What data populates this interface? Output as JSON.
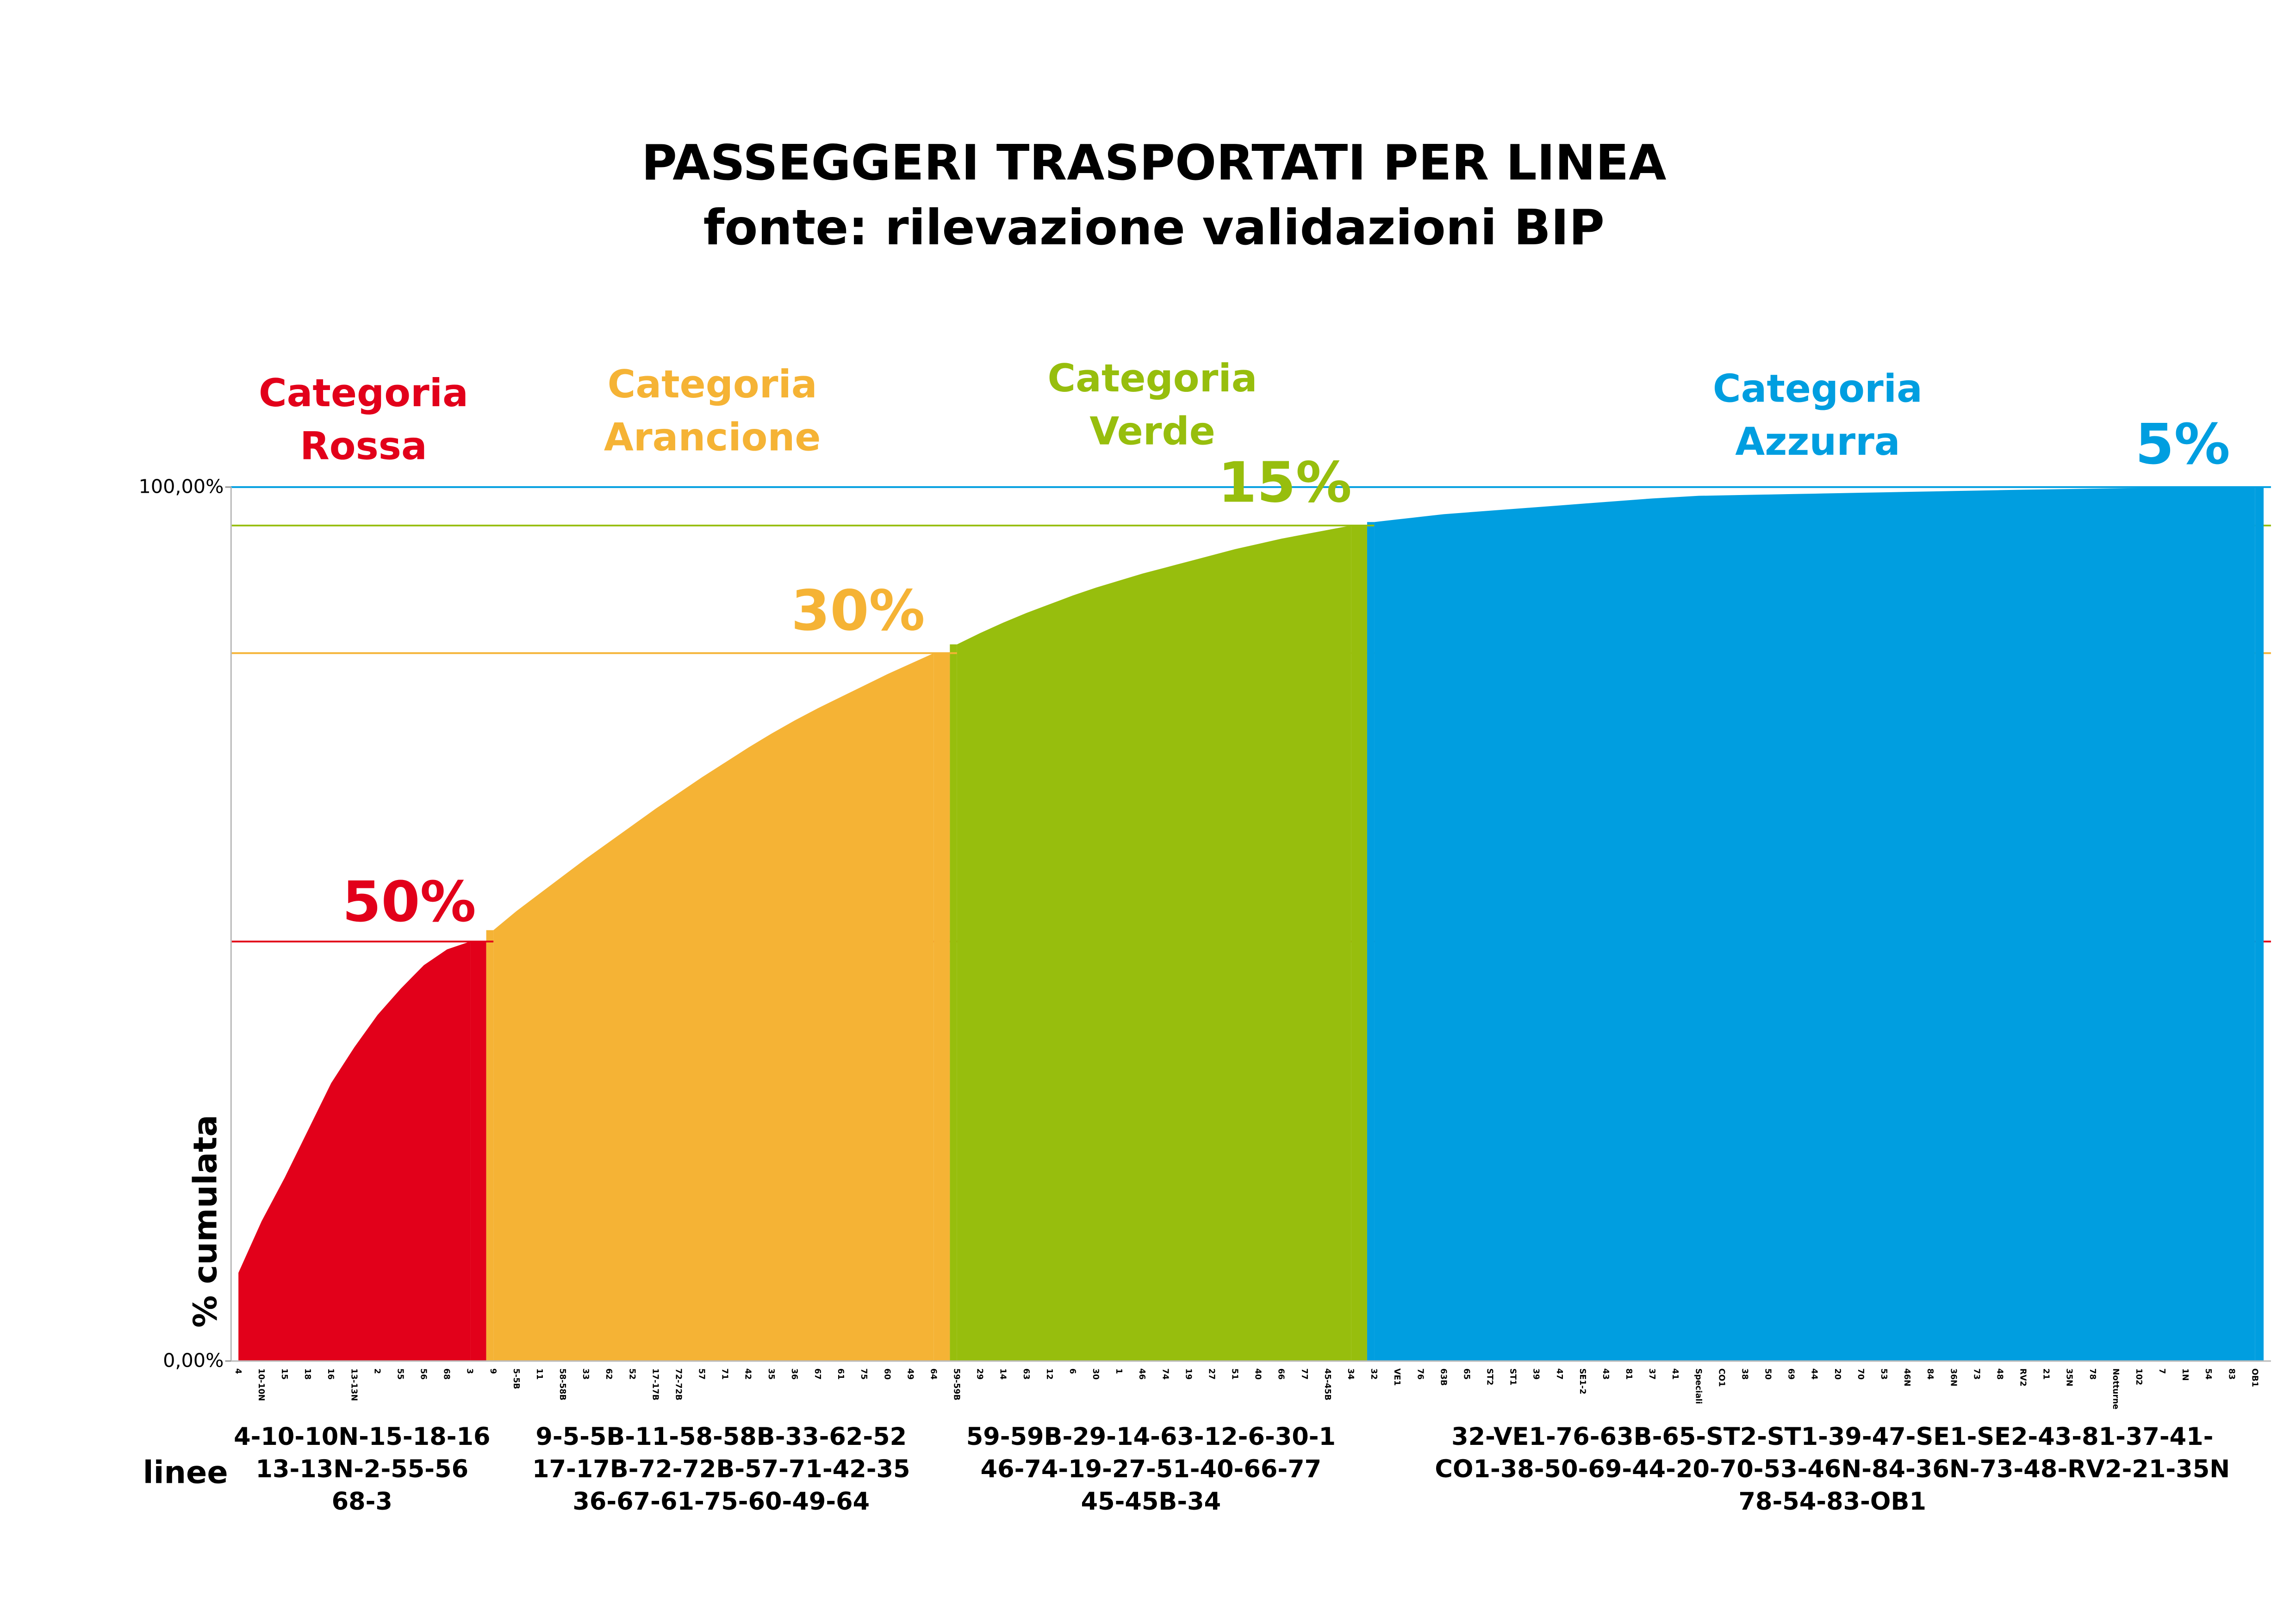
{
  "chart_data": {
    "type": "area",
    "title": "PASSEGGERI TRASPORTATI PER LINEA",
    "subtitle": "fonte: rilevazione validazioni BIP",
    "y_label": "% cumulata",
    "x_label": "linee",
    "ylim": [
      0,
      100
    ],
    "yticks": [
      {
        "value": 0,
        "label": "0,00%"
      },
      {
        "value": 100,
        "label": "100,00%"
      }
    ],
    "categories": [
      "4",
      "10-10N",
      "15",
      "18",
      "16",
      "13-13N",
      "2",
      "55",
      "56",
      "68",
      "3",
      "9",
      "5-5B",
      "11",
      "58-58B",
      "33",
      "62",
      "52",
      "17-17B",
      "72-72B",
      "57",
      "71",
      "42",
      "35",
      "36",
      "67",
      "61",
      "75",
      "60",
      "49",
      "64",
      "59-59B",
      "29",
      "14",
      "63",
      "12",
      "6",
      "30",
      "1",
      "46",
      "74",
      "19",
      "27",
      "51",
      "40",
      "66",
      "77",
      "45-45B",
      "34",
      "32",
      "VE1",
      "76",
      "63B",
      "65",
      "ST2",
      "ST1",
      "39",
      "47",
      "SE1-2",
      "43",
      "81",
      "37",
      "41",
      "Speciali",
      "CO1",
      "38",
      "50",
      "69",
      "44",
      "20",
      "70",
      "53",
      "46N",
      "84",
      "36N",
      "73",
      "48",
      "RV2",
      "21",
      "35N",
      "78",
      "Notturne",
      "102",
      "7",
      "1N",
      "54",
      "83",
      "OB1"
    ],
    "series": [
      {
        "name": "Categoria Rossa",
        "color": "#e2001a",
        "share_label": "50%",
        "lines_label": [
          "4-10-10N-15-18-16",
          "13-13N-2-55-56",
          "68-3"
        ],
        "values": [
          10.1,
          16,
          21,
          26.4,
          31.8,
          35.9,
          39.6,
          42.6,
          45.3,
          47.1,
          48,
          null,
          null,
          null,
          null,
          null,
          null,
          null,
          null,
          null,
          null,
          null,
          null,
          null,
          null,
          null,
          null,
          null,
          null,
          null,
          null,
          null,
          null,
          null,
          null,
          null,
          null,
          null,
          null,
          null,
          null,
          null,
          null,
          null,
          null,
          null,
          null,
          null,
          null,
          null,
          null,
          null,
          null,
          null,
          null,
          null,
          null,
          null,
          null,
          null,
          null,
          null,
          null,
          null,
          null,
          null,
          null,
          null,
          null,
          null,
          null,
          null,
          null,
          null,
          null,
          null,
          null,
          null,
          null,
          null,
          null,
          null,
          null,
          null,
          null,
          null,
          null,
          null
        ]
      },
      {
        "name": "Categoria Arancione",
        "color": "#f5b335",
        "share_label": "30%",
        "lines_label": [
          "9-5-5B-11-58-58B-33-62-52",
          "17-17B-72-72B-57-71-42-35",
          "36-67-61-75-60-49-64"
        ],
        "values": [
          null,
          null,
          null,
          null,
          null,
          null,
          null,
          null,
          null,
          null,
          null,
          49.3,
          51.5,
          53.5,
          55.5,
          57.5,
          59.4,
          61.3,
          63.2,
          65,
          66.8,
          68.5,
          70.2,
          71.8,
          73.3,
          74.7,
          76,
          77.3,
          78.6,
          79.8,
          81,
          null,
          null,
          null,
          null,
          null,
          null,
          null,
          null,
          null,
          null,
          null,
          null,
          null,
          null,
          null,
          null,
          null,
          null,
          null,
          null,
          null,
          null,
          null,
          null,
          null,
          null,
          null,
          null,
          null,
          null,
          null,
          null,
          null,
          null,
          null,
          null,
          null,
          null,
          null,
          null,
          null,
          null,
          null,
          null,
          null,
          null,
          null,
          null,
          null,
          null,
          null,
          null,
          null,
          null,
          null,
          null,
          null
        ]
      },
      {
        "name": "Categoria Verde",
        "color": "#97be0d",
        "share_label": "15%",
        "lines_label": [
          "59-59B-29-14-63-12-6-30-1",
          "46-74-19-27-51-40-66-77",
          "45-45B-34"
        ],
        "values": [
          null,
          null,
          null,
          null,
          null,
          null,
          null,
          null,
          null,
          null,
          null,
          null,
          null,
          null,
          null,
          null,
          null,
          null,
          null,
          null,
          null,
          null,
          null,
          null,
          null,
          null,
          null,
          null,
          null,
          null,
          null,
          82,
          83.3,
          84.5,
          85.6,
          86.6,
          87.6,
          88.5,
          89.3,
          90.1,
          90.8,
          91.5,
          92.2,
          92.9,
          93.5,
          94.1,
          94.6,
          95.1,
          95.6,
          null,
          null,
          null,
          null,
          null,
          null,
          null,
          null,
          null,
          null,
          null,
          null,
          null,
          null,
          null,
          null,
          null,
          null,
          null,
          null,
          null,
          null,
          null,
          null,
          null,
          null,
          null,
          null,
          null,
          null,
          null,
          null,
          null,
          null,
          null,
          null,
          null,
          null,
          null
        ]
      },
      {
        "name": "Categoria Azzurra",
        "color": "#009ee0",
        "share_label": "5%",
        "lines_label": [
          "32-VE1-76-63B-65-ST2-ST1-39-47-SE1-SE2-43-81-37-41-",
          "CO1-38-50-69-44-20-70-53-46N-84-36N-73-48-RV2-21-35N",
          "78-54-83-OB1"
        ],
        "values": [
          null,
          null,
          null,
          null,
          null,
          null,
          null,
          null,
          null,
          null,
          null,
          null,
          null,
          null,
          null,
          null,
          null,
          null,
          null,
          null,
          null,
          null,
          null,
          null,
          null,
          null,
          null,
          null,
          null,
          null,
          null,
          null,
          null,
          null,
          null,
          null,
          null,
          null,
          null,
          null,
          null,
          null,
          null,
          null,
          null,
          null,
          null,
          null,
          null,
          96,
          96.3,
          96.6,
          96.9,
          97.1,
          97.3,
          97.5,
          97.7,
          97.9,
          98.1,
          98.3,
          98.5,
          98.7,
          98.85,
          99,
          99.05,
          99.1,
          99.15,
          99.2,
          99.25,
          99.3,
          99.35,
          99.4,
          99.45,
          99.5,
          99.55,
          99.6,
          99.65,
          99.7,
          99.74,
          99.78,
          99.82,
          99.86,
          99.9,
          99.93,
          99.96,
          99.98,
          99.99,
          100
        ]
      }
    ]
  }
}
